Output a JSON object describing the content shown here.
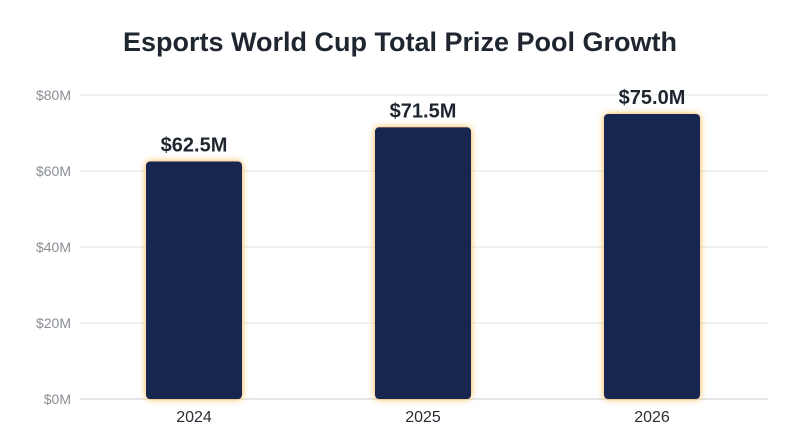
{
  "chart_data": {
    "type": "bar",
    "title": "Esports World Cup Total Prize Pool Growth",
    "xlabel": "",
    "ylabel": "",
    "categories": [
      "2024",
      "2025",
      "2026"
    ],
    "values": [
      62.5,
      71.5,
      75.0
    ],
    "data_labels": [
      "$62.5M",
      "$71.5M",
      "$75.0M"
    ],
    "yticks": [
      0,
      20,
      40,
      60,
      80
    ],
    "ytick_labels": [
      "$0M",
      "$20M",
      "$40M",
      "$60M",
      "$80M"
    ],
    "ylim": [
      0,
      80
    ],
    "grid": true,
    "legend": "none",
    "colors": {
      "bar": "#13284f",
      "glow": "#f5a623",
      "grid": "#e3e5e8",
      "title": "#1f2630"
    }
  }
}
